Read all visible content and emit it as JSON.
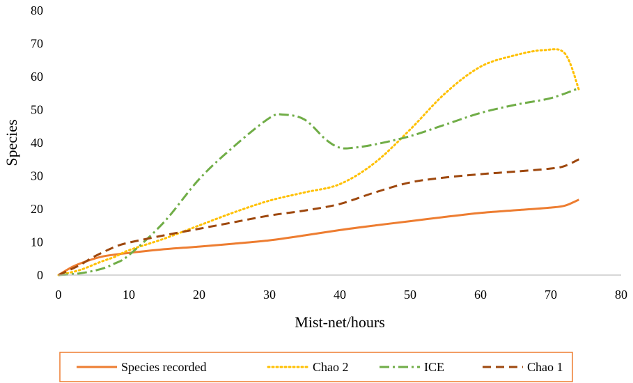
{
  "chart_data": {
    "type": "line",
    "title": "",
    "xlabel": "Mist-net/hours",
    "ylabel": "Species",
    "xlim": [
      0,
      80
    ],
    "ylim": [
      0,
      80
    ],
    "x_ticks": [
      0,
      10,
      20,
      30,
      40,
      50,
      60,
      70,
      80
    ],
    "y_ticks": [
      0,
      10,
      20,
      30,
      40,
      50,
      60,
      70,
      80
    ],
    "grid": false,
    "legend": "bottom",
    "series": [
      {
        "name": "Species recorded",
        "color": "#ED7D31",
        "dash": "solid",
        "points": [
          [
            0,
            0
          ],
          [
            2,
            2.5
          ],
          [
            4,
            4.2
          ],
          [
            6,
            5.5
          ],
          [
            8,
            6.2
          ],
          [
            10,
            6.7
          ],
          [
            15,
            7.8
          ],
          [
            20,
            8.6
          ],
          [
            25,
            9.5
          ],
          [
            30,
            10.5
          ],
          [
            35,
            12
          ],
          [
            40,
            13.6
          ],
          [
            45,
            15
          ],
          [
            50,
            16.3
          ],
          [
            55,
            17.6
          ],
          [
            60,
            18.8
          ],
          [
            65,
            19.6
          ],
          [
            70,
            20.4
          ],
          [
            72,
            21
          ],
          [
            74,
            22.8
          ]
        ]
      },
      {
        "name": "Chao 2",
        "color": "#FFC000",
        "dash": "dot",
        "points": [
          [
            0,
            0
          ],
          [
            3,
            1.5
          ],
          [
            6,
            4
          ],
          [
            8,
            5.5
          ],
          [
            10,
            7.5
          ],
          [
            15,
            11
          ],
          [
            20,
            15
          ],
          [
            25,
            19
          ],
          [
            30,
            22.5
          ],
          [
            35,
            25
          ],
          [
            40,
            27.5
          ],
          [
            45,
            34
          ],
          [
            50,
            44
          ],
          [
            55,
            55
          ],
          [
            60,
            63
          ],
          [
            65,
            66.5
          ],
          [
            69,
            68
          ],
          [
            72,
            67
          ],
          [
            74,
            56
          ]
        ]
      },
      {
        "name": "ICE",
        "color": "#70AD47",
        "dash": "dashdot",
        "points": [
          [
            0,
            0
          ],
          [
            3,
            0.5
          ],
          [
            6,
            1.8
          ],
          [
            8,
            3.5
          ],
          [
            10,
            6
          ],
          [
            15,
            16
          ],
          [
            20,
            29
          ],
          [
            25,
            39
          ],
          [
            30,
            47.5
          ],
          [
            32,
            48.5
          ],
          [
            35,
            47
          ],
          [
            38,
            41
          ],
          [
            40,
            38.5
          ],
          [
            42,
            38.5
          ],
          [
            45,
            39.5
          ],
          [
            50,
            42
          ],
          [
            55,
            45.5
          ],
          [
            60,
            49
          ],
          [
            65,
            51.5
          ],
          [
            70,
            53.5
          ],
          [
            74,
            56.5
          ]
        ]
      },
      {
        "name": "Chao 1",
        "color": "#9E480E",
        "dash": "dash",
        "points": [
          [
            0,
            0
          ],
          [
            3,
            3
          ],
          [
            5,
            5.5
          ],
          [
            8,
            8.5
          ],
          [
            10,
            9.8
          ],
          [
            15,
            12
          ],
          [
            20,
            14
          ],
          [
            25,
            16
          ],
          [
            30,
            18
          ],
          [
            35,
            19.5
          ],
          [
            40,
            21.5
          ],
          [
            45,
            25
          ],
          [
            50,
            28
          ],
          [
            55,
            29.5
          ],
          [
            60,
            30.5
          ],
          [
            65,
            31.3
          ],
          [
            70,
            32.2
          ],
          [
            72,
            33
          ],
          [
            74,
            35
          ]
        ]
      }
    ]
  }
}
